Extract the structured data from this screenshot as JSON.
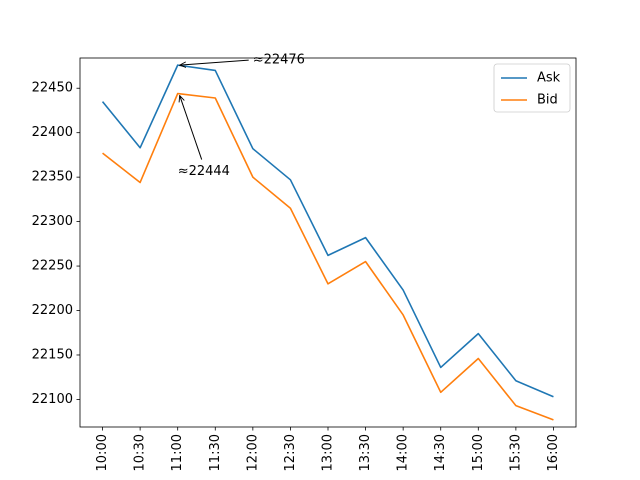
{
  "chart_data": {
    "type": "line",
    "x": [
      "10:00",
      "10:30",
      "11:00",
      "11:30",
      "12:00",
      "12:30",
      "13:00",
      "13:30",
      "14:00",
      "14:30",
      "15:00",
      "15:30",
      "16:00"
    ],
    "series": [
      {
        "name": "Ask",
        "color": "#1f77b4",
        "values": [
          22435,
          22383,
          22476,
          22470,
          22382,
          22347,
          22262,
          22282,
          22223,
          22136,
          22174,
          22121,
          22103
        ]
      },
      {
        "name": "Bid",
        "color": "#ff7f0e",
        "values": [
          22377,
          22344,
          22444,
          22439,
          22350,
          22315,
          22230,
          22255,
          22195,
          22108,
          22146,
          22093,
          22077
        ]
      }
    ],
    "ylim": [
      22069,
      22484
    ],
    "yticks": [
      22100,
      22150,
      22200,
      22250,
      22300,
      22350,
      22400,
      22450
    ],
    "xtick_rotation": 90,
    "grid": false,
    "legend": "top-right",
    "annotations": [
      {
        "text": "≈22476",
        "x": "11:00",
        "y": 22476,
        "series": "Ask"
      },
      {
        "text": "≈22444",
        "x": "11:00",
        "y": 22444,
        "series": "Bid"
      }
    ]
  }
}
